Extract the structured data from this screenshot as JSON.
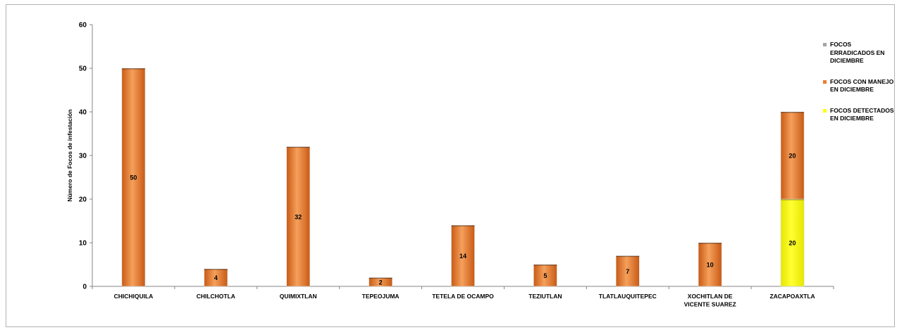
{
  "chart_data": {
    "type": "bar",
    "stacked": true,
    "ylabel": "Número de Focos de infestación",
    "xlabel": "",
    "ylim": [
      0,
      60
    ],
    "yticks": [
      "0",
      "10",
      "20",
      "30",
      "40",
      "50",
      "60"
    ],
    "grid": false,
    "legend_position": "right",
    "categories": [
      [
        "CHICHIQUILA"
      ],
      [
        "CHILCHOTLA"
      ],
      [
        "QUIMIXTLAN"
      ],
      [
        "TEPEOJUMA"
      ],
      [
        "TETELA DE OCAMPO"
      ],
      [
        "TEZIUTLAN"
      ],
      [
        "TLATLAUQUITEPEC"
      ],
      [
        "XOCHITLAN DE",
        "VICENTE SUAREZ"
      ],
      [
        "ZACAPOAXTLA"
      ]
    ],
    "series": [
      {
        "name": "FOCOS DETECTADOS EN DICIEMBRE",
        "legend_lines": [
          "FOCOS DETECTADOS",
          "EN DICIEMBRE"
        ],
        "color": "#ffff00",
        "values": [
          0,
          0,
          0,
          0,
          0,
          0,
          0,
          0,
          20
        ],
        "labels": [
          "",
          "",
          "",
          "",
          "",
          "",
          "",
          "",
          "20"
        ]
      },
      {
        "name": "FOCOS CON MANEJO EN DICIEMBRE",
        "legend_lines": [
          "FOCOS CON MANEJO",
          "EN DICIEMBRE"
        ],
        "color": "#ed7d31",
        "values": [
          50,
          4,
          32,
          2,
          14,
          5,
          7,
          10,
          20
        ],
        "labels": [
          "50",
          "4",
          "32",
          "2",
          "14",
          "5",
          "",
          "10",
          "20"
        ]
      },
      {
        "name": "FOCOS ERRADICADOS EN DICIEMBRE",
        "legend_lines": [
          "FOCOS",
          "ERRADICADOS EN",
          "DICIEMBRE"
        ],
        "color": "#a5a5a5",
        "values": [
          0,
          0,
          0,
          0,
          0,
          0,
          0,
          0,
          0
        ],
        "labels": [
          "",
          "",
          "",
          "",
          "",
          "",
          "",
          "",
          ""
        ]
      }
    ],
    "annotations": [
      {
        "category_index": 6,
        "text": "7"
      }
    ]
  }
}
